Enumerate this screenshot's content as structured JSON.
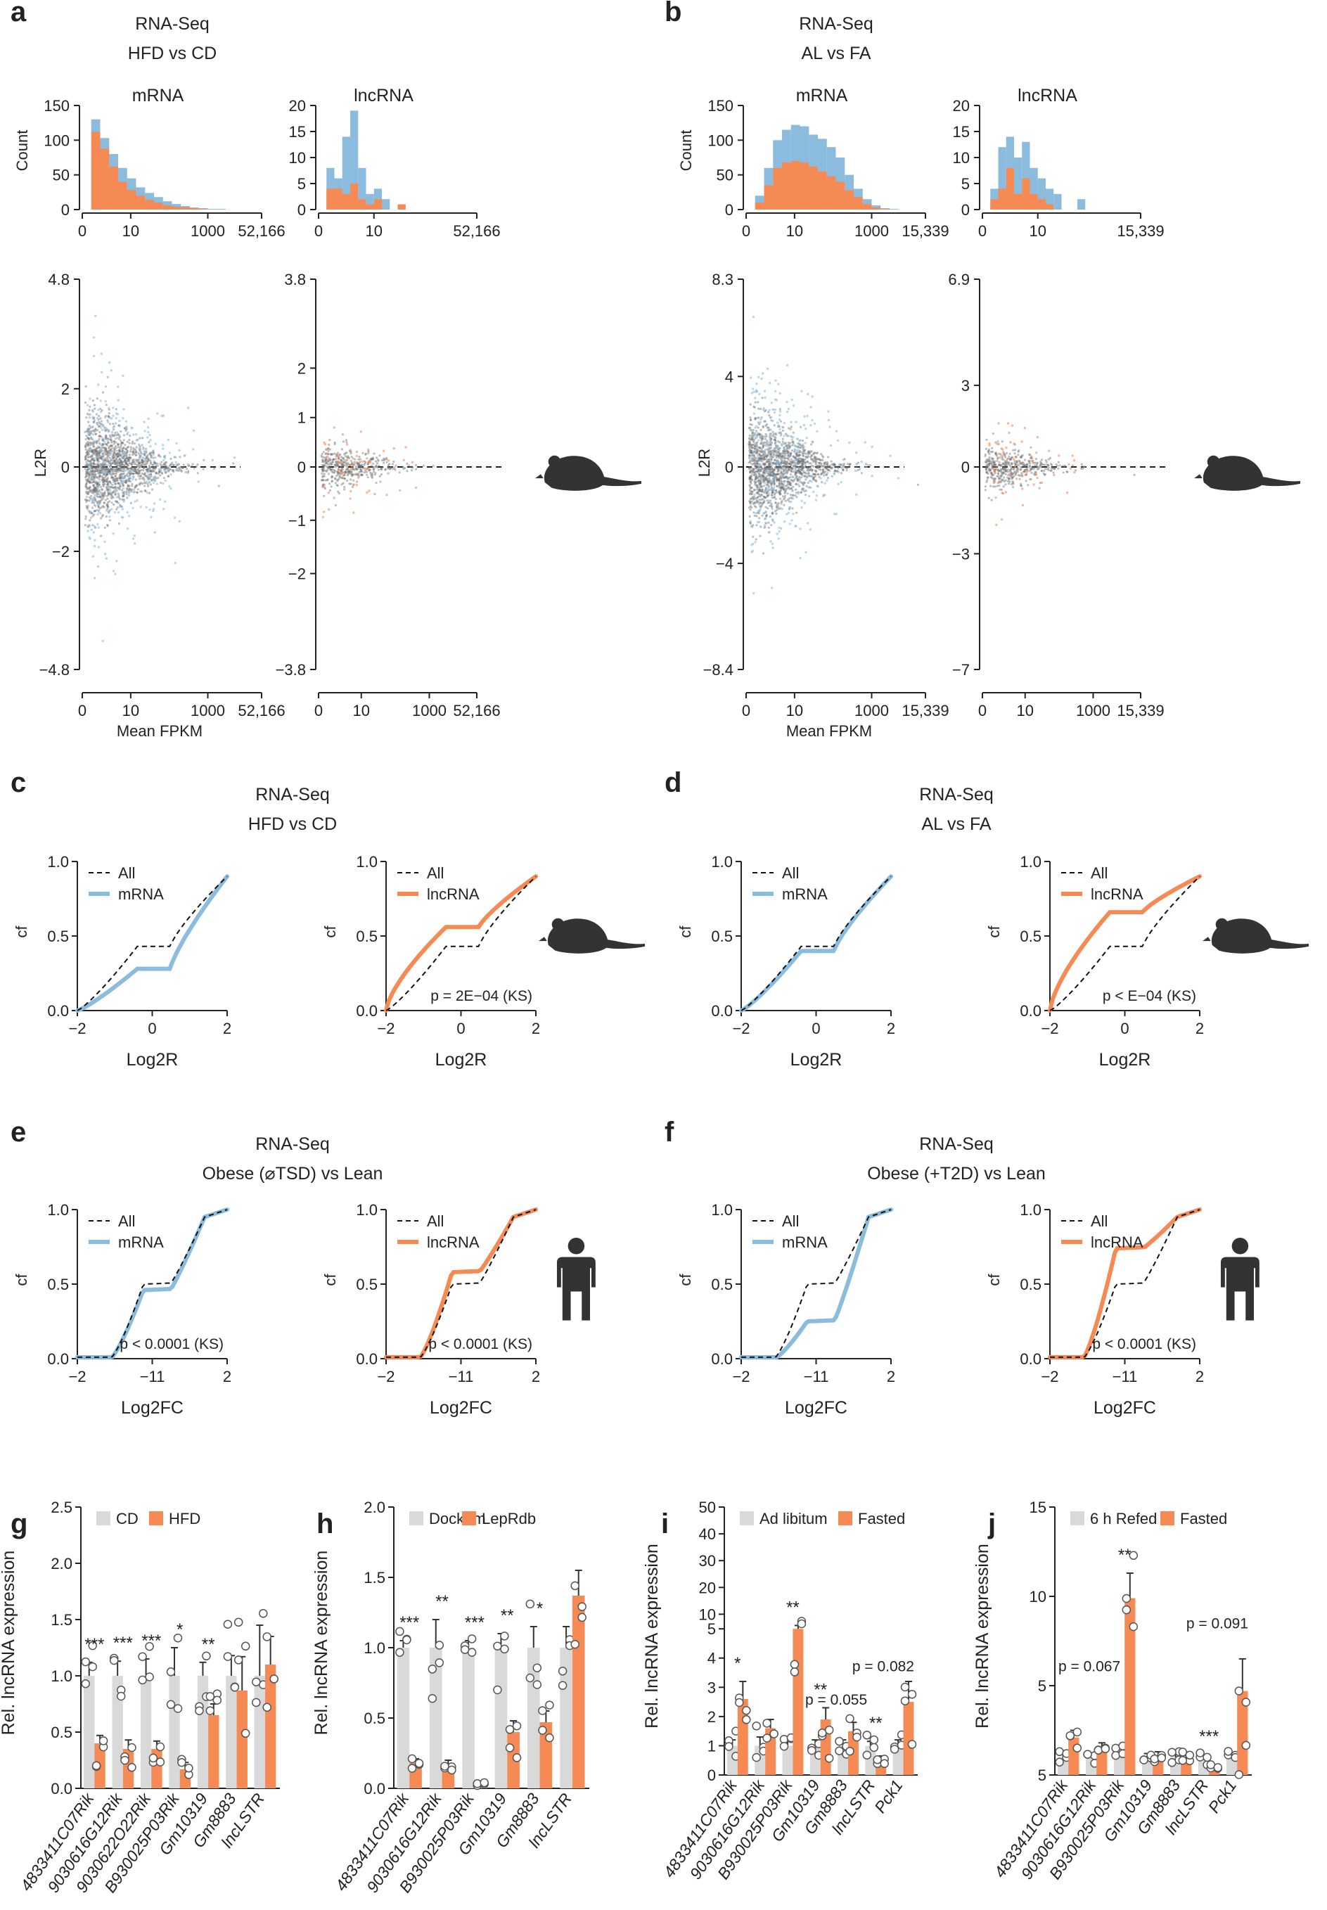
{
  "colors": {
    "orange": "#F58A55",
    "blue": "#8CBCDD",
    "grey": "#d9d9d9",
    "dark": "#333333"
  },
  "icons": {
    "mouse": "mouse-icon",
    "human": "human-icon"
  },
  "panels_ab": [
    {
      "letter": "a",
      "title1": "RNA-Seq",
      "title2": "HFD vs CD",
      "groups": [
        {
          "name": "mRNA",
          "hist_max": 150,
          "hist_ticks": [
            "150",
            "100",
            "50",
            "0"
          ],
          "hist_xticks": [
            "0",
            "10",
            "1000",
            "52,166"
          ],
          "blue": [
            0,
            130,
            103,
            80,
            60,
            45,
            32,
            24,
            18,
            12,
            8,
            5,
            3,
            2,
            1,
            1,
            0,
            0,
            0,
            0
          ],
          "orange": [
            0,
            112,
            88,
            62,
            40,
            28,
            20,
            14,
            10,
            6,
            4,
            3,
            2,
            1,
            0,
            0,
            0,
            0,
            0,
            0
          ],
          "yticks": [
            "4.8",
            "2",
            "0",
            "−2",
            "−4.8"
          ],
          "yvals": [
            4.8,
            2,
            0,
            -2,
            -4.8
          ],
          "ymax": 4.8,
          "xticks": [
            "0",
            "10",
            "1000",
            "52,166"
          ],
          "scatter_density": "dense",
          "highlight": "blue"
        },
        {
          "name": "lncRNA",
          "hist_max": 20,
          "hist_ticks": [
            "20",
            "15",
            "10",
            "5",
            "0"
          ],
          "hist_xticks": [
            "0",
            "10",
            "52,166"
          ],
          "blue": [
            0,
            8,
            6,
            14,
            19,
            8,
            3,
            4,
            2,
            0,
            1,
            0,
            0,
            0,
            0,
            0,
            0,
            0,
            0,
            0
          ],
          "orange": [
            0,
            4,
            4,
            3,
            5,
            2,
            1,
            2,
            0,
            0,
            1,
            0,
            0,
            0,
            0,
            0,
            0,
            0,
            0,
            0
          ],
          "yticks": [
            "3.8",
            "2",
            "1",
            "0",
            "−1",
            "−2",
            "−3.8"
          ],
          "yvals": [
            3.8,
            2,
            1,
            0,
            -1,
            -2,
            -3.8
          ],
          "ymax": 3.8,
          "xticks": [
            "0",
            "10",
            "1000",
            "52,166"
          ],
          "scatter_density": "sparse",
          "highlight": "orange"
        }
      ],
      "ylabel": "L2R",
      "hist_ylabel": "Count",
      "xlabel": "Mean FPKM"
    },
    {
      "letter": "b",
      "title1": "RNA-Seq",
      "title2": "AL vs FA",
      "groups": [
        {
          "name": "mRNA",
          "hist_max": 150,
          "hist_ticks": [
            "150",
            "100",
            "50",
            "0"
          ],
          "hist_xticks": [
            "0",
            "10",
            "1000",
            "15,339"
          ],
          "blue": [
            0,
            20,
            60,
            100,
            115,
            122,
            120,
            108,
            102,
            90,
            75,
            50,
            30,
            15,
            6,
            2,
            1,
            0,
            0,
            0
          ],
          "orange": [
            0,
            10,
            35,
            60,
            68,
            70,
            68,
            62,
            55,
            48,
            40,
            28,
            18,
            8,
            3,
            1,
            0,
            0,
            0,
            0
          ],
          "yticks": [
            "8.3",
            "4",
            "0",
            "−4",
            "−8.4"
          ],
          "yvals": [
            8.3,
            4,
            0,
            -4,
            -8.4
          ],
          "ymax": 8.3,
          "xticks": [
            "0",
            "10",
            "1000",
            "15,339"
          ],
          "scatter_density": "dense",
          "highlight": "blue"
        },
        {
          "name": "lncRNA",
          "hist_max": 20,
          "hist_ticks": [
            "20",
            "15",
            "10",
            "5",
            "0"
          ],
          "hist_xticks": [
            "0",
            "10",
            "15,339"
          ],
          "blue": [
            0,
            4,
            12,
            14,
            10,
            13,
            8,
            6,
            4,
            3,
            0,
            0,
            2,
            0,
            0,
            0,
            0,
            0,
            0,
            0
          ],
          "orange": [
            0,
            2,
            4,
            8,
            3,
            6,
            3,
            2,
            1,
            0,
            0,
            0,
            0,
            0,
            0,
            0,
            0,
            0,
            0,
            0
          ],
          "yticks": [
            "6.9",
            "3",
            "0",
            "−3",
            "−7"
          ],
          "yvals": [
            6.9,
            3,
            0,
            -3,
            -7
          ],
          "ymax": 6.9,
          "xticks": [
            "0",
            "10",
            "1000",
            "15,339"
          ],
          "scatter_density": "sparse",
          "highlight": "orange"
        }
      ],
      "ylabel": "L2R",
      "hist_ylabel": "Count",
      "xlabel": "Mean FPKM"
    }
  ],
  "cdf_panels": [
    {
      "letter": "c",
      "title1": "RNA-Seq",
      "title2": "HFD vs CD",
      "icon": "mouse",
      "xlabel": "Log2R",
      "plots": [
        {
          "series": "mRNA",
          "color": "blue",
          "pval": "",
          "xticks": [
            "−2",
            "0",
            "2"
          ]
        },
        {
          "series": "lncRNA",
          "color": "orange",
          "pval": "p = 2E−04 (KS)",
          "xticks": [
            "−2",
            "0",
            "2"
          ]
        }
      ]
    },
    {
      "letter": "d",
      "title1": "RNA-Seq",
      "title2": "AL vs FA",
      "icon": "mouse",
      "xlabel": "Log2R",
      "plots": [
        {
          "series": "mRNA",
          "color": "blue",
          "pval": "",
          "xticks": [
            "−2",
            "0",
            "2"
          ]
        },
        {
          "series": "lncRNA",
          "color": "orange",
          "pval": "p < E−04 (KS)",
          "xticks": [
            "−2",
            "0",
            "2"
          ]
        }
      ]
    },
    {
      "letter": "e",
      "title1": "RNA-Seq",
      "title2": "Obese (⌀TSD) vs Lean",
      "icon": "human",
      "xlabel": "Log2FC",
      "plots": [
        {
          "series": "mRNA",
          "color": "blue",
          "pval": "p < 0.0001 (KS)",
          "xticks": [
            "−2",
            "−11",
            "2"
          ]
        },
        {
          "series": "lncRNA",
          "color": "orange",
          "pval": "p < 0.0001 (KS)",
          "xticks": [
            "−2",
            "−11",
            "2"
          ]
        }
      ]
    },
    {
      "letter": "f",
      "title1": "RNA-Seq",
      "title2": "Obese (+T2D) vs Lean",
      "icon": "human",
      "xlabel": "Log2FC",
      "plots": [
        {
          "series": "mRNA",
          "color": "blue",
          "pval": "",
          "xticks": [
            "−2",
            "−11",
            "2"
          ]
        },
        {
          "series": "lncRNA",
          "color": "orange",
          "pval": "p < 0.0001 (KS)",
          "xticks": [
            "−2",
            "−11",
            "2"
          ]
        }
      ]
    }
  ],
  "cdf_common": {
    "ylabel": "cf",
    "yticks": [
      "1.0",
      "0.5",
      "0.0"
    ],
    "all_label": "All"
  },
  "chart_data": [
    {
      "type": "bar",
      "panel": "g",
      "ylabel": "Rel. lncRNA expression",
      "ylim": [
        0,
        2.5
      ],
      "yticks": [
        "2.5",
        "2.0",
        "1.5",
        "1.0",
        "0.5",
        "0.0"
      ],
      "legend": [
        "CD",
        "HFD"
      ],
      "categories": [
        "4833411C07Rik",
        "9030616G12Rik",
        "9030622O22Rik",
        "B930025P03Rik",
        "Gm10319",
        "Gm8883",
        "lncLSTR"
      ],
      "series": [
        {
          "name": "CD",
          "values": [
            1.0,
            1.0,
            1.0,
            1.0,
            1.0,
            1.0,
            1.0
          ],
          "err": [
            0.12,
            0.13,
            0.15,
            0.25,
            0.12,
            0.18,
            0.45
          ]
        },
        {
          "name": "HFD",
          "values": [
            0.4,
            0.35,
            0.35,
            0.17,
            0.65,
            0.87,
            1.1
          ],
          "err": [
            0.07,
            0.08,
            0.07,
            0.06,
            0.1,
            0.3,
            0.25
          ]
        }
      ],
      "stars": [
        "***",
        "***",
        "***",
        "*",
        "**",
        "",
        ""
      ]
    },
    {
      "type": "bar",
      "panel": "h",
      "ylabel": "Rel. lncRNA expression",
      "ylim": [
        0,
        2.0
      ],
      "yticks": [
        "2.0",
        "1.5",
        "1.0",
        "0.5",
        "0.0"
      ],
      "legend": [
        "Dock7m",
        "LepRdb"
      ],
      "categories": [
        "4833411C07Rik",
        "9030616G12Rik",
        "B930025P03Rik",
        "Gm10319",
        "Gm8883",
        "lncLSTR"
      ],
      "series": [
        {
          "name": "Dock7m",
          "values": [
            1.0,
            1.0,
            1.0,
            1.0,
            1.0,
            1.0
          ],
          "err": [
            0.05,
            0.2,
            0.05,
            0.1,
            0.15,
            0.15
          ]
        },
        {
          "name": "LepRdb",
          "values": [
            0.18,
            0.17,
            0.03,
            0.4,
            0.47,
            1.37
          ],
          "err": [
            0.03,
            0.03,
            0.01,
            0.08,
            0.08,
            0.18
          ]
        }
      ],
      "stars": [
        "***",
        "**",
        "***",
        "**",
        "*",
        ""
      ]
    },
    {
      "type": "bar",
      "panel": "i",
      "ylabel": "Rel. lncRNA expression",
      "ylim": [
        0,
        50
      ],
      "broken_axis": true,
      "yticks": [
        "50",
        "40",
        "30",
        "20",
        "10",
        "5",
        "4",
        "3",
        "2",
        "1",
        "0"
      ],
      "legend": [
        "Ad libitum",
        "Fasted"
      ],
      "categories": [
        "4833411C07Rik",
        "9030616G12Rik",
        "B930025P03Rik",
        "Gm10319",
        "Gm8883",
        "lncLSTR",
        "Pck1"
      ],
      "series": [
        {
          "name": "Ad libitum",
          "values": [
            1.0,
            1.0,
            1.0,
            1.0,
            1.0,
            1.0,
            1.0
          ],
          "err": [
            0.2,
            0.3,
            0.2,
            0.2,
            0.2,
            0.15,
            0.2
          ]
        },
        {
          "name": "Fasted",
          "values": [
            2.6,
            1.6,
            5.0,
            1.9,
            1.5,
            0.55,
            2.5
          ],
          "err": [
            0.6,
            0.3,
            0.8,
            0.4,
            0.3,
            0.1,
            0.7
          ]
        }
      ],
      "stars": [
        "*",
        "",
        "**",
        "**",
        "",
        "**",
        ""
      ],
      "pvals": [
        {
          "text": "p = 0.082"
        },
        {
          "text": "p = 0.055"
        }
      ]
    },
    {
      "type": "bar",
      "panel": "j",
      "ylabel": "Rel. lncRNA expression",
      "ylim": [
        0,
        15
      ],
      "yticks": [
        "15",
        "10",
        "5",
        "5"
      ],
      "legend": [
        "6 h Refed",
        "Fasted"
      ],
      "categories": [
        "4833411C07Rik",
        "9030616G12Rik",
        "B930025P03Rik",
        "Gm10319",
        "Gm8883",
        "lncLSTR",
        "Pck1"
      ],
      "series": [
        {
          "name": "6 h Refed",
          "values": [
            1.0,
            1.0,
            1.0,
            1.0,
            1.0,
            1.0,
            1.0
          ],
          "err": [
            0.2,
            0.2,
            0.2,
            0.2,
            0.15,
            0.15,
            0.2
          ]
        },
        {
          "name": "Fasted",
          "values": [
            2.1,
            1.5,
            9.9,
            1.1,
            0.9,
            0.35,
            4.7
          ],
          "err": [
            0.4,
            0.3,
            1.4,
            0.2,
            0.2,
            0.1,
            1.8
          ]
        }
      ],
      "stars": [
        "",
        "",
        "**",
        "",
        "",
        "***",
        ""
      ],
      "pvals": [
        {
          "text": "p = 0.067"
        },
        {
          "text": "p = 0.091"
        }
      ]
    }
  ]
}
